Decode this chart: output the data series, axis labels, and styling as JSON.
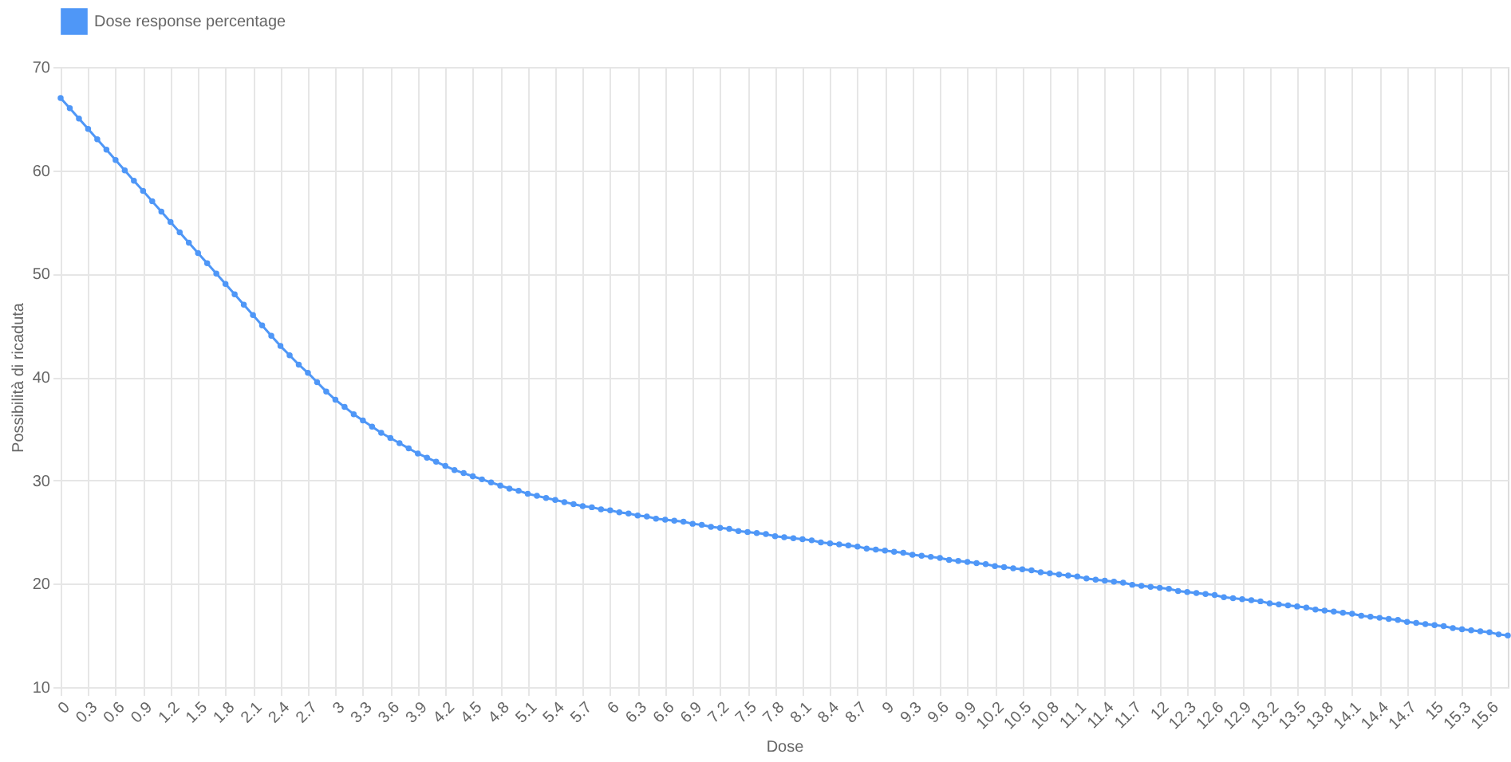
{
  "chart_data": {
    "type": "line",
    "xlabel": "Dose",
    "ylabel": "Possibilità di ricaduta",
    "x": [
      0,
      0.1,
      0.2,
      0.3,
      0.4,
      0.5,
      0.6,
      0.7,
      0.8,
      0.9,
      1,
      1.1,
      1.2,
      1.3,
      1.4,
      1.5,
      1.6,
      1.7,
      1.8,
      1.9,
      2,
      2.1,
      2.2,
      2.3,
      2.4,
      2.5,
      2.6,
      2.7,
      2.8,
      2.9,
      3,
      3.1,
      3.2,
      3.3,
      3.4,
      3.5,
      3.6,
      3.7,
      3.8,
      3.9,
      4,
      4.1,
      4.2,
      4.3,
      4.4,
      4.5,
      4.6,
      4.7,
      4.8,
      4.9,
      5,
      5.1,
      5.2,
      5.3,
      5.4,
      5.5,
      5.6,
      5.7,
      5.8,
      5.9,
      6,
      6.1,
      6.2,
      6.3,
      6.4,
      6.5,
      6.6,
      6.7,
      6.8,
      6.9,
      7,
      7.1,
      7.2,
      7.3,
      7.4,
      7.5,
      7.6,
      7.7,
      7.8,
      7.9,
      8,
      8.1,
      8.2,
      8.3,
      8.4,
      8.5,
      8.6,
      8.7,
      8.8,
      8.9,
      9,
      9.1,
      9.2,
      9.3,
      9.4,
      9.5,
      9.6,
      9.7,
      9.8,
      9.9,
      10,
      10.1,
      10.2,
      10.3,
      10.4,
      10.5,
      10.6,
      10.7,
      10.8,
      10.9,
      11,
      11.1,
      11.2,
      11.3,
      11.4,
      11.5,
      11.6,
      11.7,
      11.8,
      11.9,
      12,
      12.1,
      12.2,
      12.3,
      12.4,
      12.5,
      12.6,
      12.7,
      12.8,
      12.9,
      13,
      13.1,
      13.2,
      13.3,
      13.4,
      13.5,
      13.6,
      13.7,
      13.8,
      13.9,
      14,
      14.1,
      14.2,
      14.3,
      14.4,
      14.5,
      14.6,
      14.7,
      14.8,
      14.9,
      15,
      15.1,
      15.2,
      15.3,
      15.4,
      15.5,
      15.6,
      15.7,
      15.8
    ],
    "series": [
      {
        "name": "Dose response percentage",
        "color": "#4f97f7",
        "values": [
          67,
          66,
          65,
          64,
          63,
          62,
          61,
          60,
          59,
          58,
          57,
          56,
          55,
          54,
          53,
          52,
          51,
          50,
          49,
          48,
          47,
          46,
          45,
          44,
          43,
          42.1,
          41.2,
          40.4,
          39.5,
          38.6,
          37.8,
          37.1,
          36.4,
          35.8,
          35.2,
          34.6,
          34.1,
          33.6,
          33.1,
          32.6,
          32.2,
          31.8,
          31.4,
          31.0,
          30.7,
          30.4,
          30.1,
          29.8,
          29.5,
          29.2,
          29.0,
          28.7,
          28.5,
          28.3,
          28.1,
          27.9,
          27.7,
          27.5,
          27.4,
          27.2,
          27.1,
          26.9,
          26.8,
          26.6,
          26.5,
          26.3,
          26.2,
          26.1,
          26.0,
          25.8,
          25.7,
          25.5,
          25.4,
          25.3,
          25.1,
          25.0,
          24.9,
          24.8,
          24.6,
          24.5,
          24.4,
          24.3,
          24.2,
          24.0,
          23.9,
          23.8,
          23.7,
          23.6,
          23.4,
          23.3,
          23.2,
          23.1,
          23.0,
          22.8,
          22.7,
          22.6,
          22.5,
          22.3,
          22.2,
          22.1,
          22.0,
          21.9,
          21.7,
          21.6,
          21.5,
          21.4,
          21.3,
          21.1,
          21.0,
          20.9,
          20.8,
          20.7,
          20.5,
          20.4,
          20.3,
          20.2,
          20.1,
          19.9,
          19.8,
          19.7,
          19.6,
          19.5,
          19.3,
          19.2,
          19.1,
          19.0,
          18.9,
          18.7,
          18.6,
          18.5,
          18.4,
          18.3,
          18.1,
          18.0,
          17.9,
          17.8,
          17.7,
          17.5,
          17.4,
          17.3,
          17.2,
          17.1,
          16.9,
          16.8,
          16.7,
          16.6,
          16.5,
          16.3,
          16.2,
          16.1,
          16.0,
          15.9,
          15.7,
          15.6,
          15.5,
          15.4,
          15.3,
          15.1,
          15.0
        ]
      }
    ],
    "xlim": [
      0,
      15.8
    ],
    "xticks": [
      0,
      0.3,
      0.6,
      0.9,
      1.2,
      1.5,
      1.8,
      2.1,
      2.4,
      2.7,
      3,
      3.3,
      3.6,
      3.9,
      4.2,
      4.5,
      4.8,
      5.1,
      5.4,
      5.7,
      6,
      6.3,
      6.6,
      6.9,
      7.2,
      7.5,
      7.8,
      8.1,
      8.4,
      8.7,
      9,
      9.3,
      9.6,
      9.9,
      10.2,
      10.5,
      10.8,
      11.1,
      11.4,
      11.7,
      12,
      12.3,
      12.6,
      12.9,
      13.2,
      13.5,
      13.8,
      14.1,
      14.4,
      14.7,
      15,
      15.3,
      15.6
    ],
    "ylim": [
      10,
      70
    ],
    "yticks": [
      10,
      20,
      30,
      40,
      50,
      60,
      70
    ],
    "grid": true,
    "legend": "top",
    "marker": "circle",
    "line_style": "solid"
  }
}
